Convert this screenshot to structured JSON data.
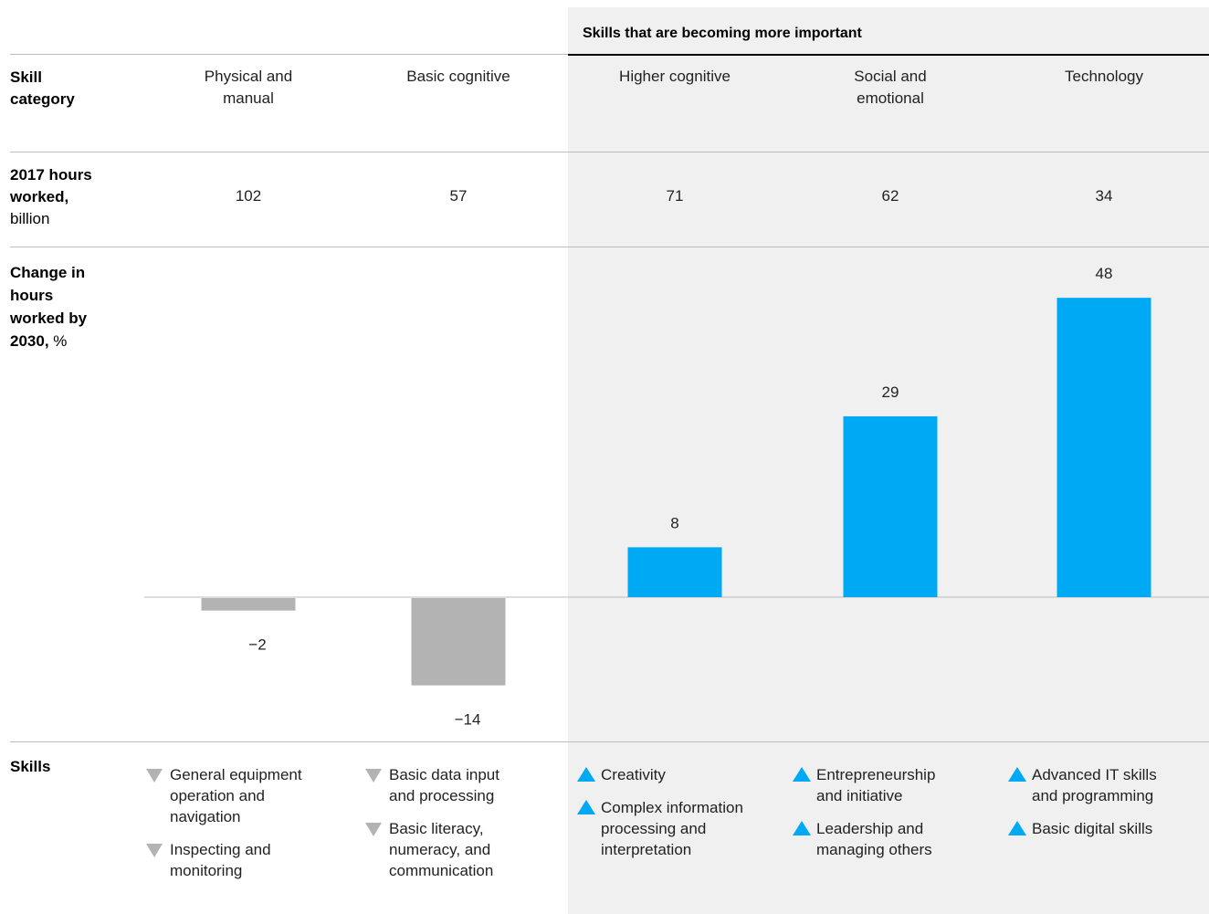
{
  "banner": "Skills that are becoming more important",
  "row_labels": {
    "category": {
      "bold": "Skill category",
      "rest": ""
    },
    "hours": {
      "bold": "2017 hours worked,",
      "rest": "billion"
    },
    "change": {
      "bold": "Change in hours worked by 2030,",
      "rest": "%"
    },
    "skills": {
      "bold": "Skills",
      "rest": ""
    }
  },
  "colors": {
    "decline": "#b3b3b3",
    "growth": "#00a9f4",
    "shade": "#f0f0f0"
  },
  "chart_data": {
    "type": "bar",
    "categories": [
      "Physical and manual",
      "Basic cognitive",
      "Higher cognitive",
      "Social and emotional",
      "Technology"
    ],
    "hours_2017_billion": [
      102,
      57,
      71,
      62,
      34
    ],
    "values": [
      -2,
      -14,
      8,
      29,
      48
    ],
    "value_labels": [
      "−2",
      "−14",
      "8",
      "29",
      "48"
    ],
    "ylim": [
      -14,
      48
    ]
  },
  "category_display": [
    [
      "Physical and",
      "manual"
    ],
    [
      "Basic cognitive"
    ],
    [
      "Higher cognitive"
    ],
    [
      "Social and",
      "emotional"
    ],
    [
      "Technology"
    ]
  ],
  "skills": [
    {
      "direction": "down",
      "items": [
        [
          "General equipment",
          "operation and",
          "navigation"
        ],
        [
          "Inspecting and",
          "monitoring"
        ]
      ]
    },
    {
      "direction": "down",
      "items": [
        [
          "Basic data input",
          "and processing"
        ],
        [
          "Basic literacy,",
          "numeracy, and",
          "communication"
        ]
      ]
    },
    {
      "direction": "up",
      "items": [
        [
          "Creativity"
        ],
        [
          "Complex information",
          "processing and",
          "interpretation"
        ]
      ]
    },
    {
      "direction": "up",
      "items": [
        [
          "Entrepreneurship",
          "and initiative"
        ],
        [
          "Leadership and",
          "managing others"
        ]
      ]
    },
    {
      "direction": "up",
      "items": [
        [
          "Advanced IT skills",
          "and programming"
        ],
        [
          "Basic digital skills"
        ]
      ]
    }
  ]
}
